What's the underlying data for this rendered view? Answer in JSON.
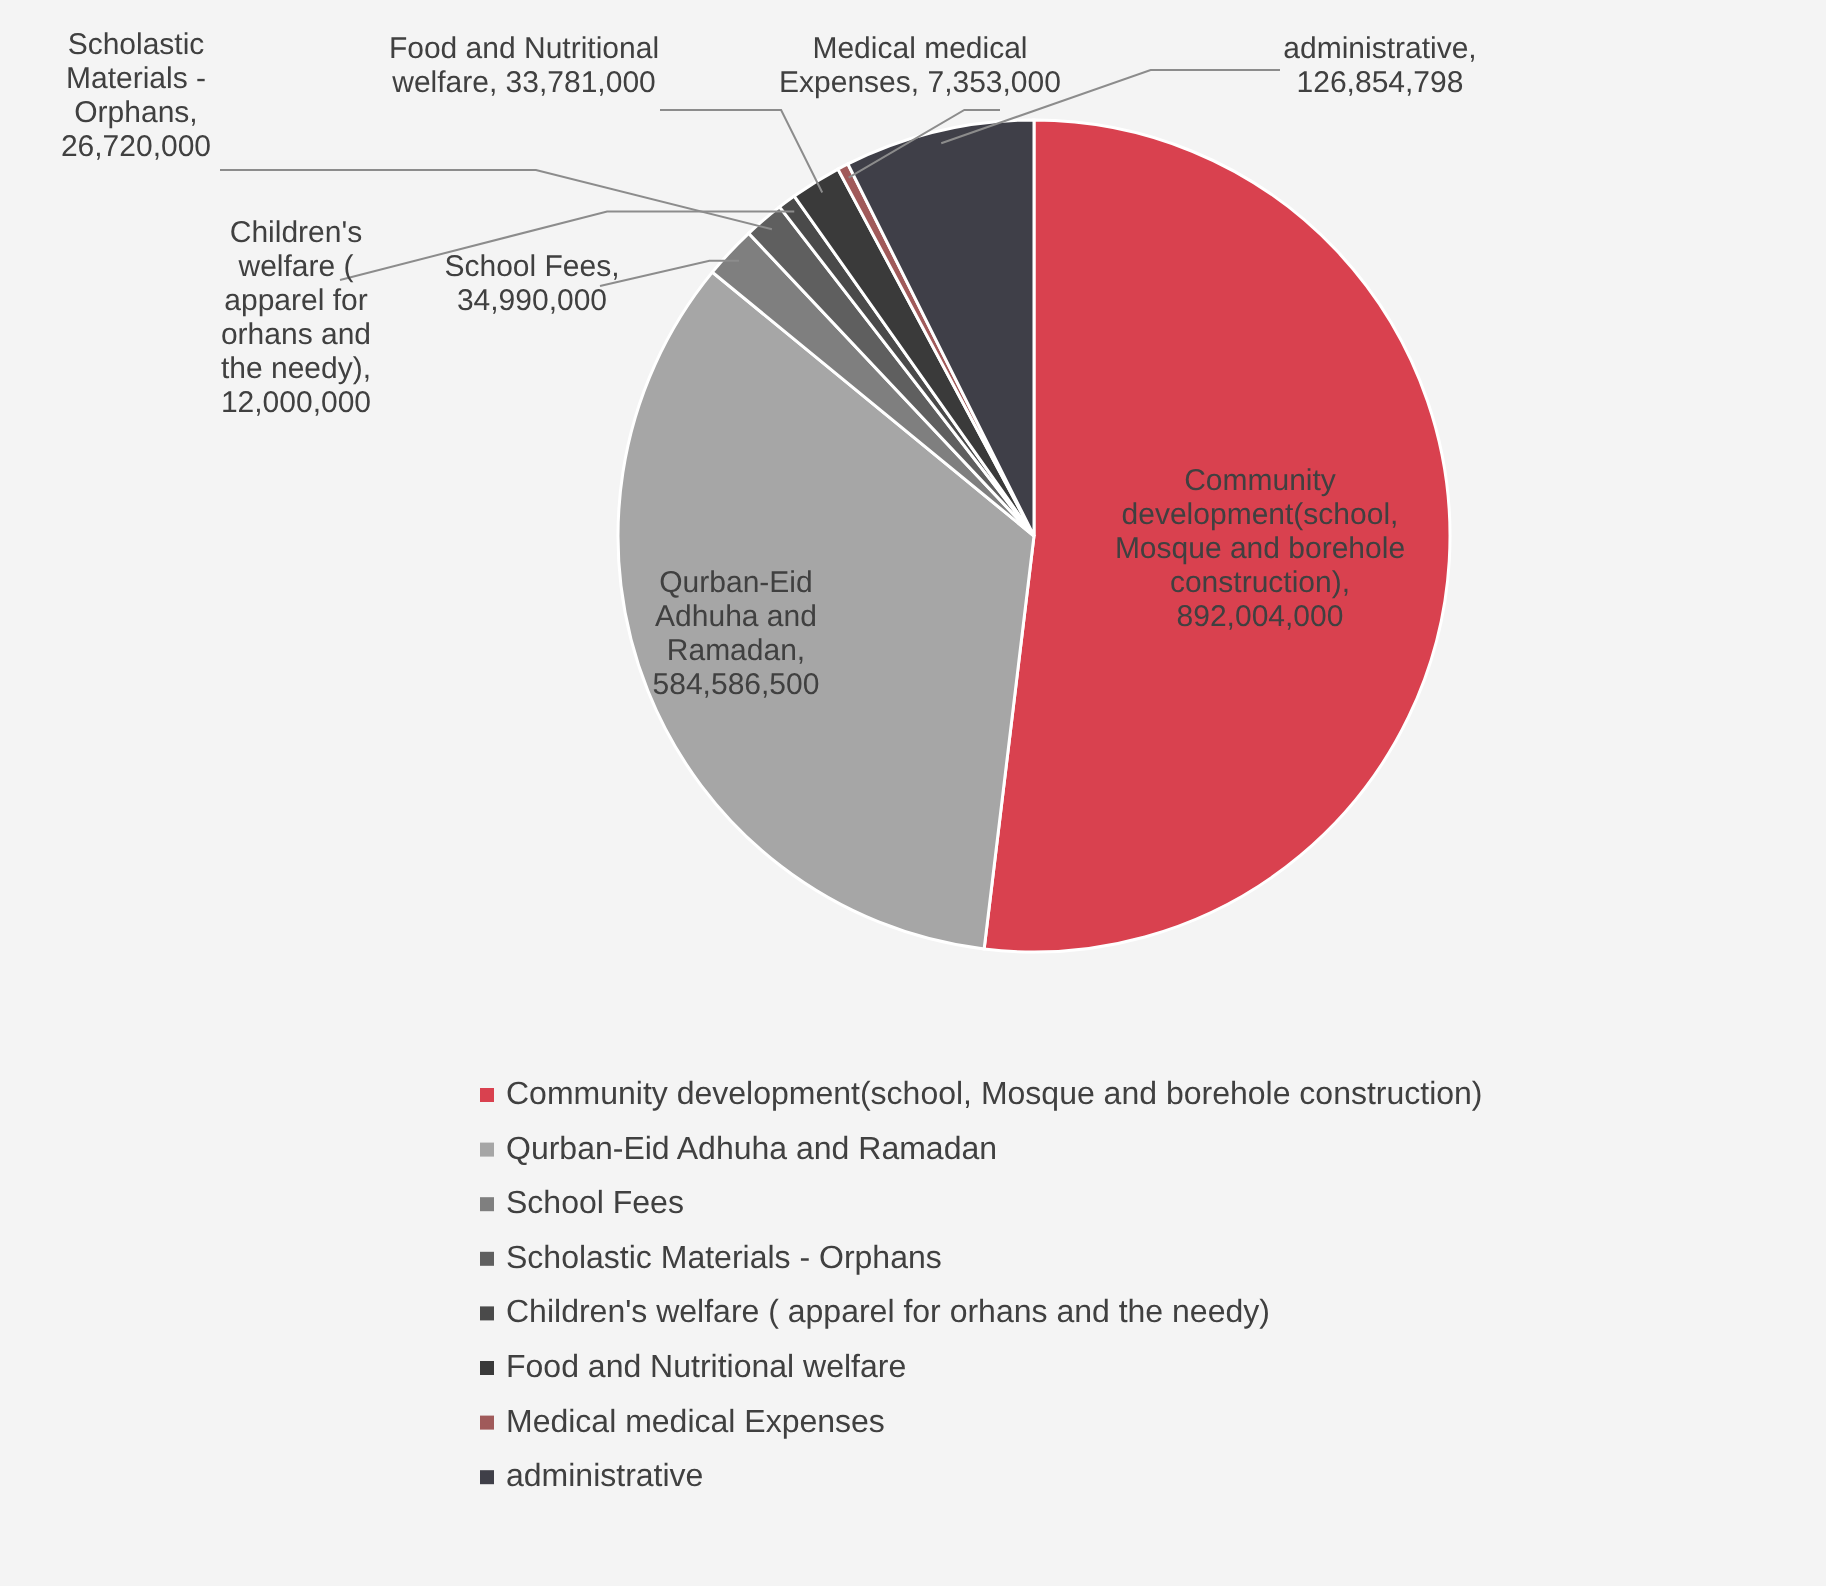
{
  "chart_data": {
    "type": "pie",
    "categories": [
      "Community development(school, Mosque and borehole construction)",
      "Qurban-Eid Adhuha and Ramadan",
      "School Fees",
      "Scholastic Materials - Orphans",
      "Children's welfare ( apparel for orhans and the needy)",
      "Food and Nutritional welfare",
      "Medical medical Expenses",
      "administrative"
    ],
    "values": [
      892004000,
      584586500,
      34990000,
      26720000,
      12000000,
      33781000,
      7353000,
      126854798
    ],
    "colors": [
      "#d9414f",
      "#a6a6a6",
      "#7f7f7f",
      "#5f5f5f",
      "#4a4a4a",
      "#3a3a3a",
      "#a05a5a",
      "#3f3f48"
    ],
    "value_labels": [
      ", 892,004,000",
      ", 584,586,500",
      ", 34,990,000",
      ", 26,720,000",
      ", 12,000,000",
      ", 33,781,000",
      ", 7,353,000",
      ", 126,854,798"
    ],
    "legend": "bottom"
  }
}
